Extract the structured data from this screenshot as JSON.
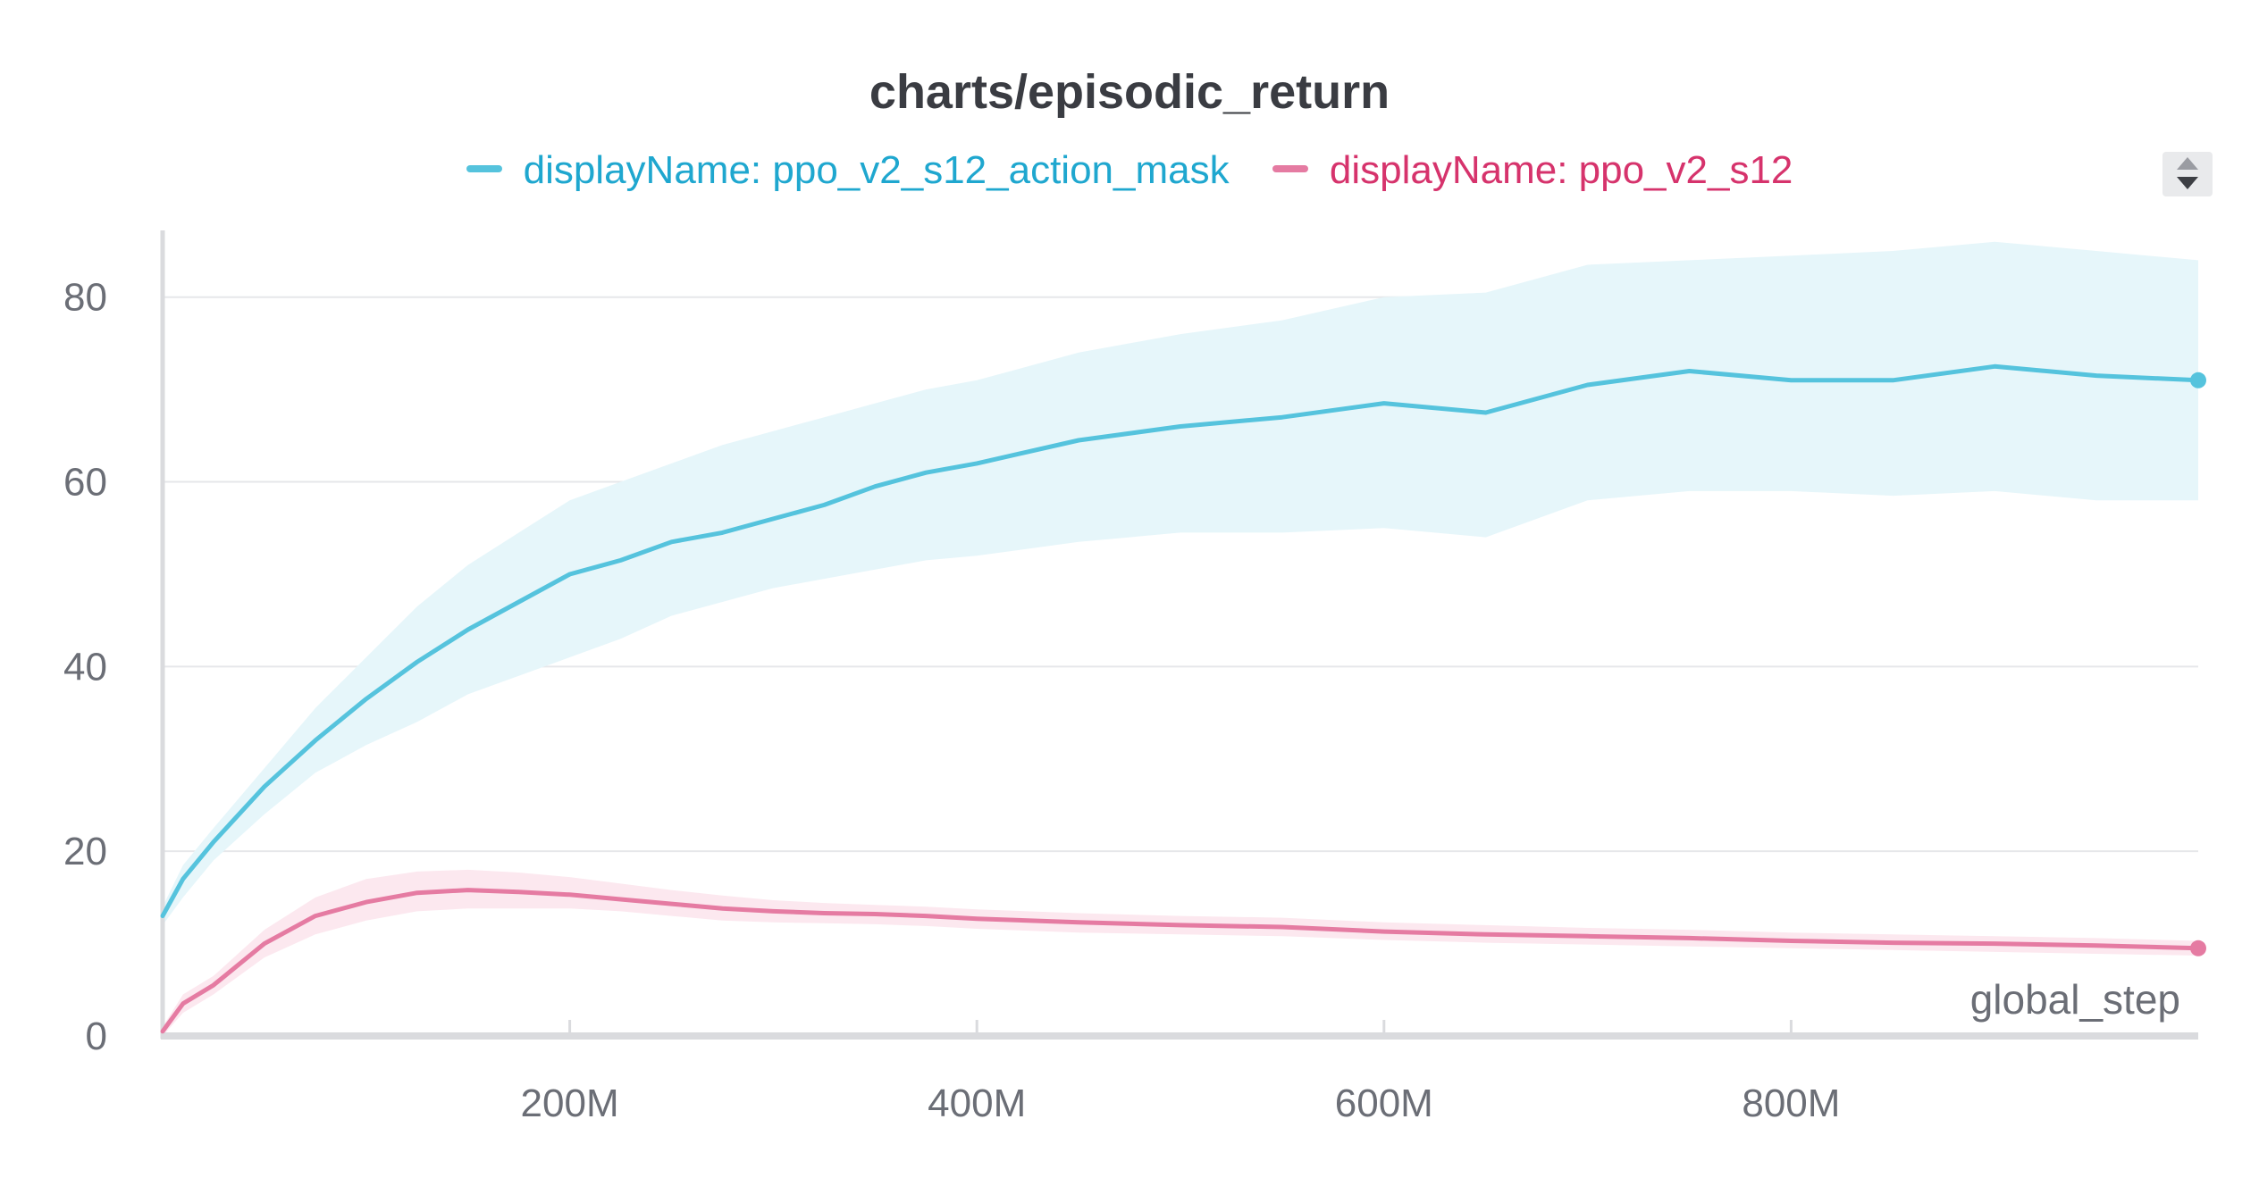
{
  "chart_data": {
    "type": "line",
    "title": "charts/episodic_return",
    "xlabel": "global_step",
    "ylabel": "",
    "xlim": [
      0,
      1000000000
    ],
    "ylim": [
      0,
      88
    ],
    "x_ticks": [
      200000000,
      400000000,
      600000000,
      800000000
    ],
    "x_tick_labels": [
      "200M",
      "400M",
      "600M",
      "800M"
    ],
    "y_ticks": [
      0,
      20,
      40,
      60,
      80
    ],
    "y_tick_labels": [
      "0",
      "20",
      "40",
      "60",
      "80"
    ],
    "grid": "horizontal",
    "legend_position": "top-center",
    "x": [
      0,
      10000000,
      25000000,
      50000000,
      75000000,
      100000000,
      125000000,
      150000000,
      175000000,
      200000000,
      225000000,
      250000000,
      275000000,
      300000000,
      325000000,
      350000000,
      375000000,
      400000000,
      450000000,
      500000000,
      550000000,
      600000000,
      650000000,
      700000000,
      750000000,
      800000000,
      850000000,
      900000000,
      950000000,
      1000000000
    ],
    "series": [
      {
        "name": "displayName: ppo_v2_s12_action_mask",
        "color": "#55c3dd",
        "values": [
          13,
          17,
          21,
          27,
          32,
          36.5,
          40.5,
          44,
          47,
          50,
          51.5,
          53.5,
          54.5,
          56,
          57.5,
          59.5,
          61,
          62,
          64.5,
          66,
          67,
          68.5,
          67.5,
          70.5,
          72,
          71,
          71,
          72.5,
          71.5,
          71
        ],
        "band_lower": [
          12,
          15,
          19,
          24,
          28.5,
          31.5,
          34,
          37,
          39,
          41,
          43,
          45.5,
          47,
          48.5,
          49.5,
          50.5,
          51.5,
          52,
          53.5,
          54.5,
          54.5,
          55,
          54,
          58,
          59,
          59,
          58.5,
          59,
          58,
          58
        ],
        "band_upper": [
          14,
          18.5,
          22.5,
          29,
          35.5,
          41,
          46.5,
          51,
          54.5,
          58,
          60,
          62,
          64,
          65.5,
          67,
          68.5,
          70,
          71,
          74,
          76,
          77.5,
          80,
          80.5,
          83.5,
          84,
          84.5,
          85,
          86,
          85,
          84
        ]
      },
      {
        "name": "displayName: ppo_v2_s12",
        "color": "#e57ba2",
        "values": [
          0.5,
          3.5,
          5.5,
          10,
          13,
          14.5,
          15.5,
          15.8,
          15.6,
          15.3,
          14.8,
          14.3,
          13.8,
          13.5,
          13.3,
          13.2,
          13,
          12.7,
          12.3,
          12,
          11.8,
          11.3,
          11,
          10.8,
          10.6,
          10.3,
          10.1,
          10,
          9.8,
          9.5
        ],
        "band_lower": [
          0,
          2.5,
          4.5,
          8.5,
          11,
          12.5,
          13.5,
          13.8,
          13.8,
          13.8,
          13.5,
          13,
          12.5,
          12.3,
          12.2,
          12.1,
          11.9,
          11.6,
          11.2,
          11,
          10.8,
          10.4,
          10.1,
          9.9,
          9.7,
          9.5,
          9.3,
          9.1,
          8.9,
          8.7
        ],
        "band_upper": [
          1,
          4.5,
          6.5,
          11.5,
          15,
          17,
          17.8,
          18,
          17.7,
          17.2,
          16.5,
          15.8,
          15.2,
          14.7,
          14.4,
          14.2,
          14,
          13.7,
          13.3,
          13,
          12.8,
          12.3,
          12,
          11.7,
          11.5,
          11.2,
          11,
          10.8,
          10.6,
          10.3
        ]
      }
    ]
  },
  "legend": {
    "items": [
      {
        "label": "displayName: ppo_v2_s12_action_mask",
        "color": "#1fa7cf"
      },
      {
        "label": "displayName: ppo_v2_s12",
        "color": "#d6336c"
      }
    ]
  },
  "colors": {
    "line_blue": "#55c3dd",
    "line_pink": "#e57ba2",
    "band_blue": "#e6f6fa",
    "band_pink": "#fce8ef",
    "grid": "#e6e7ea",
    "axis": "#dadbde",
    "tick_text": "#6b6e76"
  },
  "controls": {
    "legend_scroll_icon": "updown-arrows-icon"
  }
}
